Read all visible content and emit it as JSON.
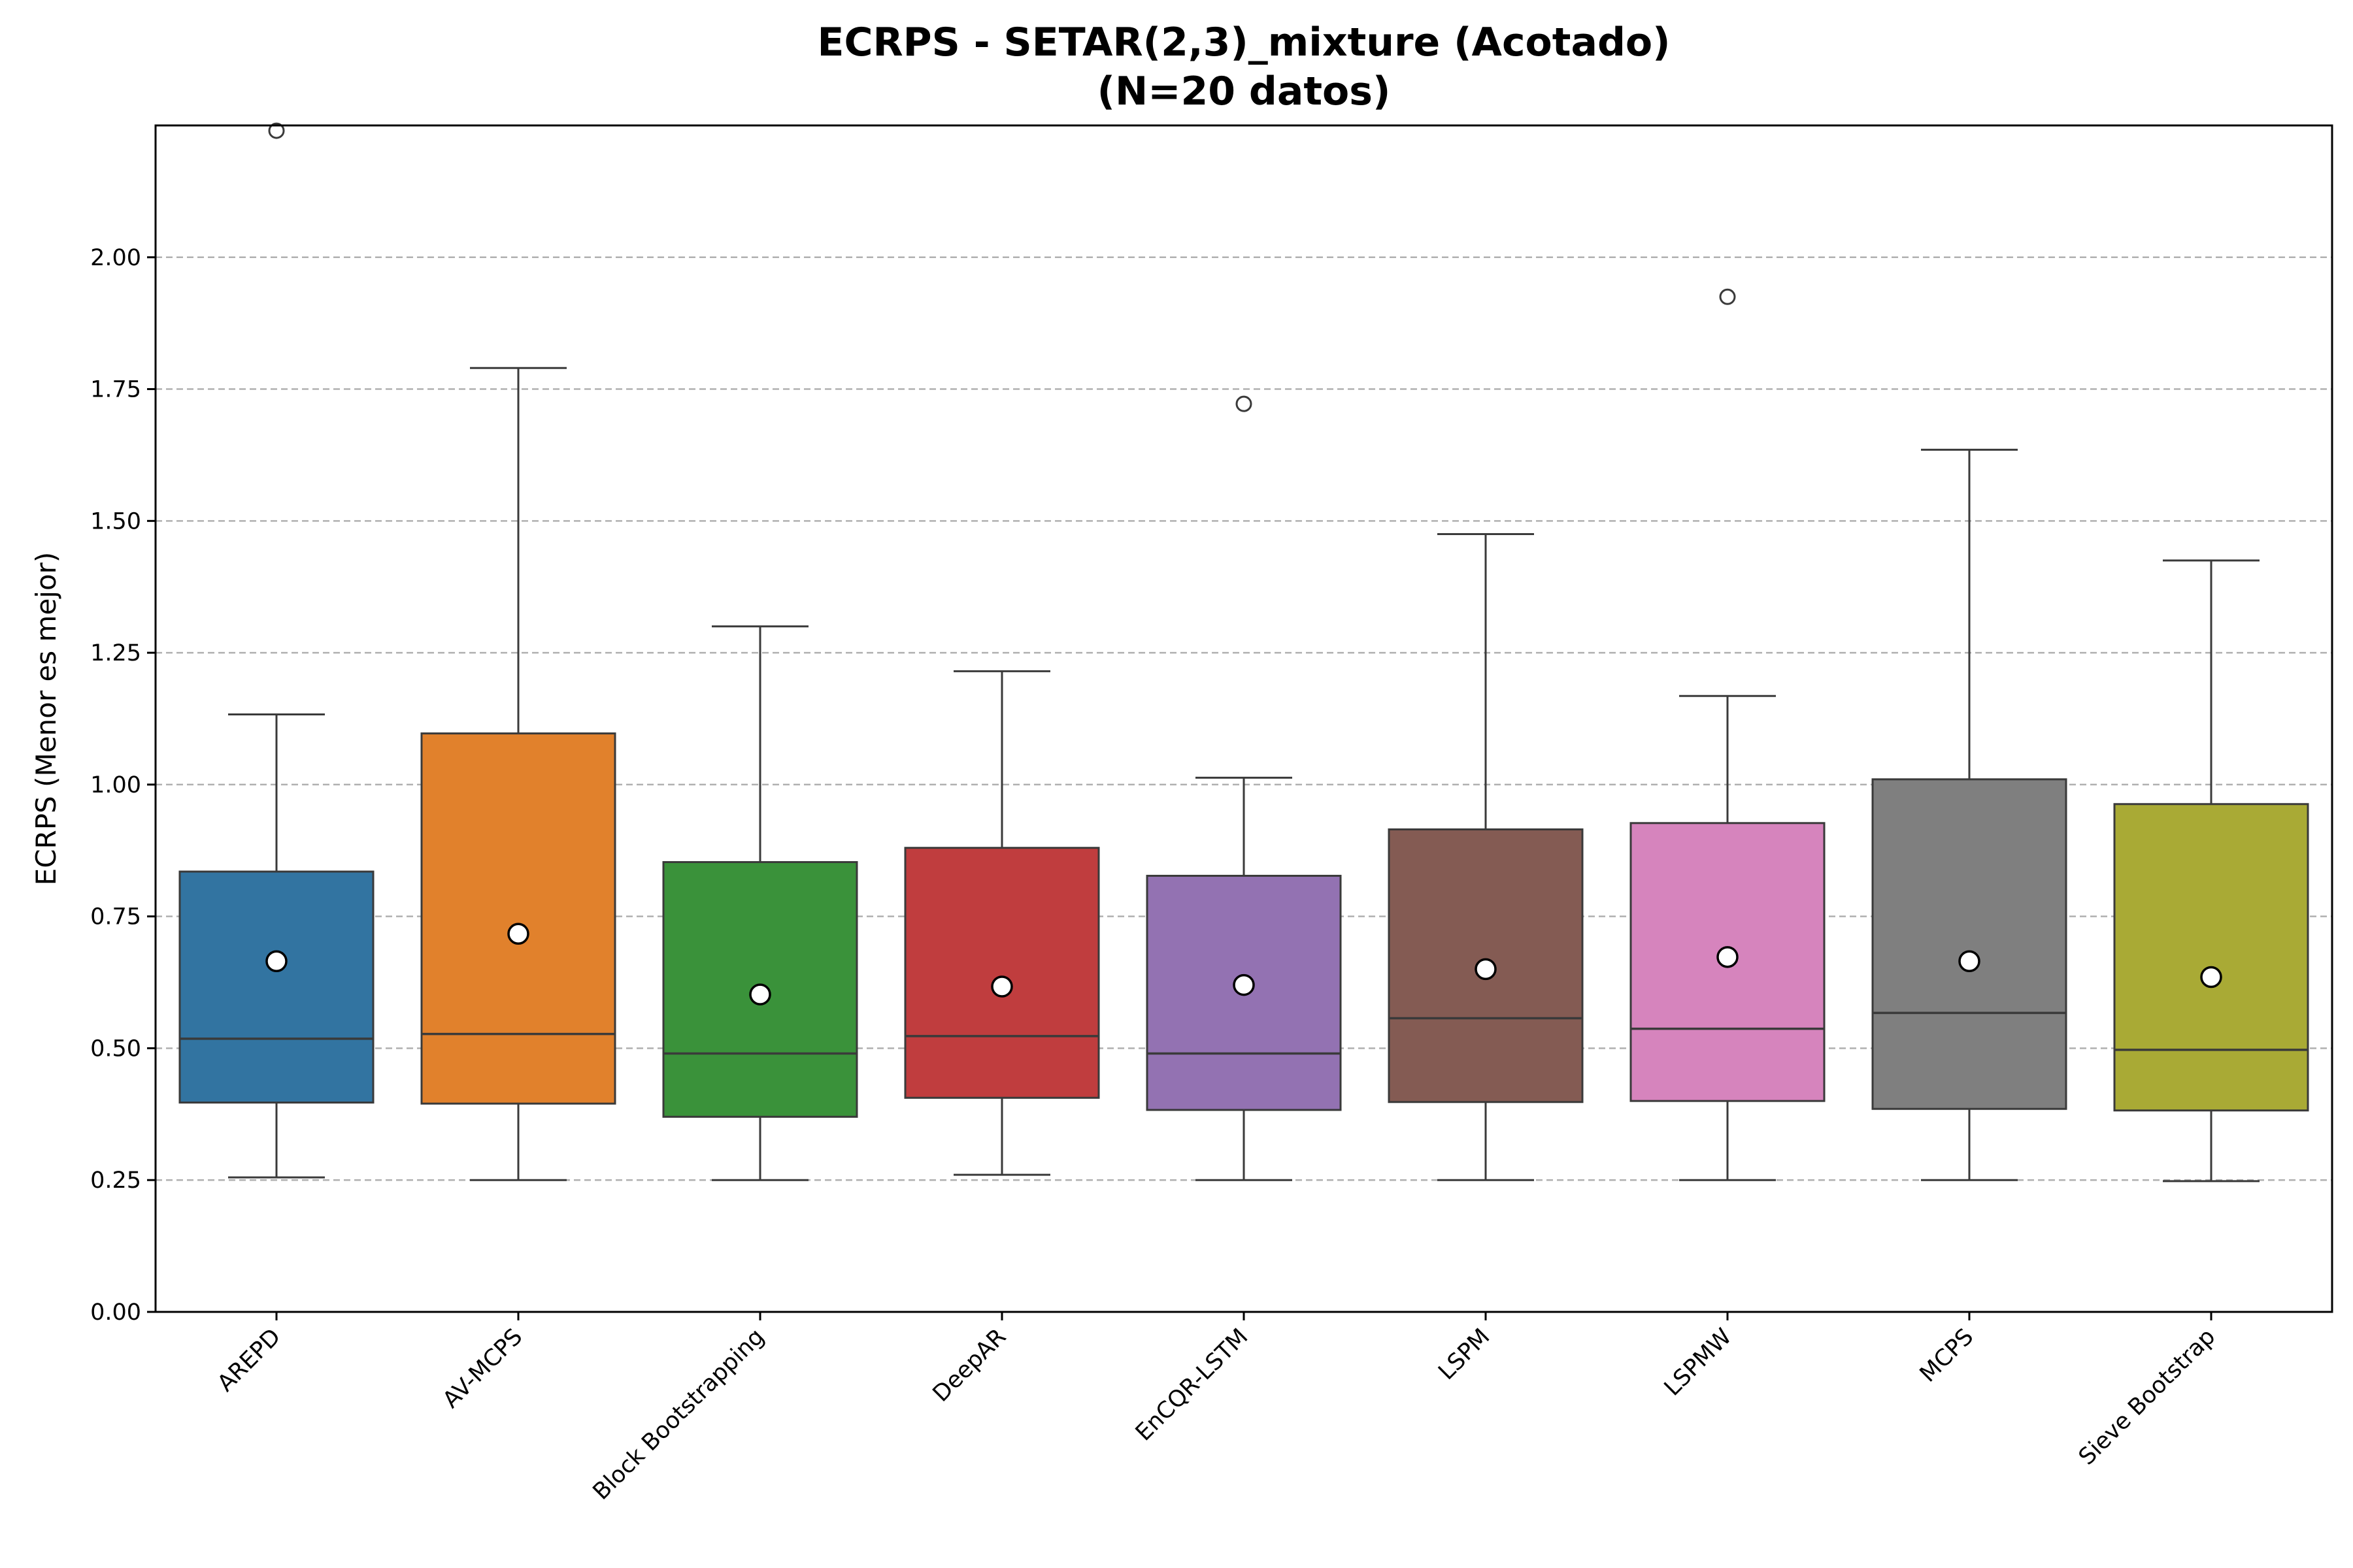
{
  "chart_data": {
    "type": "box",
    "title_line1": "ECRPS - SETAR(2,3)_mixture (Acotado)",
    "title_line2": "(N=20 datos)",
    "xlabel": "",
    "ylabel": "ECRPS (Menor es mejor)",
    "ylim": [
      0,
      2.25
    ],
    "yticks": [
      "0.00",
      "0.25",
      "0.50",
      "0.75",
      "1.00",
      "1.25",
      "1.50",
      "1.75",
      "2.00"
    ],
    "grid": "y-dashed",
    "categories": [
      "AREPD",
      "AV-MCPS",
      "Block Bootstrapping",
      "DeepAR",
      "EnCQR-LSTM",
      "LSPM",
      "LSPMW",
      "MCPS",
      "Sieve Bootstrap"
    ],
    "colors": [
      "#3274a1",
      "#e1812c",
      "#3a923a",
      "#c03d3e",
      "#9372b2",
      "#845b53",
      "#d684bd",
      "#7f7f7f",
      "#a9aa35"
    ],
    "boxes": [
      {
        "whislo": 0.255,
        "q1": 0.397,
        "med": 0.518,
        "q3": 0.835,
        "whishi": 1.133,
        "mean": 0.665,
        "fliers": [
          2.24
        ]
      },
      {
        "whislo": 0.25,
        "q1": 0.395,
        "med": 0.527,
        "q3": 1.097,
        "whishi": 1.79,
        "mean": 0.717,
        "fliers": []
      },
      {
        "whislo": 0.25,
        "q1": 0.37,
        "med": 0.49,
        "q3": 0.853,
        "whishi": 1.3,
        "mean": 0.602,
        "fliers": []
      },
      {
        "whislo": 0.26,
        "q1": 0.406,
        "med": 0.523,
        "q3": 0.88,
        "whishi": 1.215,
        "mean": 0.617,
        "fliers": []
      },
      {
        "whislo": 0.25,
        "q1": 0.383,
        "med": 0.49,
        "q3": 0.827,
        "whishi": 1.013,
        "mean": 0.62,
        "fliers": [
          1.722
        ]
      },
      {
        "whislo": 0.25,
        "q1": 0.398,
        "med": 0.557,
        "q3": 0.915,
        "whishi": 1.475,
        "mean": 0.65,
        "fliers": []
      },
      {
        "whislo": 0.25,
        "q1": 0.4,
        "med": 0.537,
        "q3": 0.927,
        "whishi": 1.168,
        "mean": 0.673,
        "fliers": [
          1.925
        ]
      },
      {
        "whislo": 0.25,
        "q1": 0.385,
        "med": 0.567,
        "q3": 1.01,
        "whishi": 1.635,
        "mean": 0.665,
        "fliers": []
      },
      {
        "whislo": 0.248,
        "q1": 0.382,
        "med": 0.497,
        "q3": 0.963,
        "whishi": 1.425,
        "mean": 0.635,
        "fliers": []
      }
    ]
  }
}
